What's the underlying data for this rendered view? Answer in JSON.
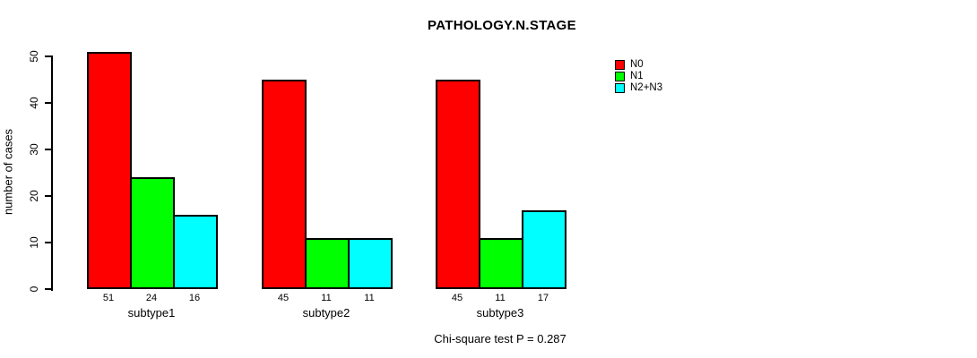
{
  "chart_data": {
    "type": "bar",
    "title": "PATHOLOGY.N.STAGE",
    "xlabel": "",
    "ylabel": "number of cases",
    "ylim": [
      0,
      50
    ],
    "yticks": [
      0,
      10,
      20,
      30,
      40,
      50
    ],
    "grid": false,
    "legend_position": "top-right",
    "categories": [
      "subtype1",
      "subtype2",
      "subtype3"
    ],
    "series": [
      {
        "name": "N0",
        "color": "#ff0000",
        "values": [
          51,
          45,
          45
        ]
      },
      {
        "name": "N1",
        "color": "#00ff00",
        "values": [
          24,
          11,
          11
        ]
      },
      {
        "name": "N2+N3",
        "color": "#00ffff",
        "values": [
          16,
          11,
          17
        ]
      }
    ],
    "show_value_labels": true,
    "bar_border_color": "#000000",
    "background": "#ffffff",
    "annotation": "Chi-square test P = 0.287"
  }
}
